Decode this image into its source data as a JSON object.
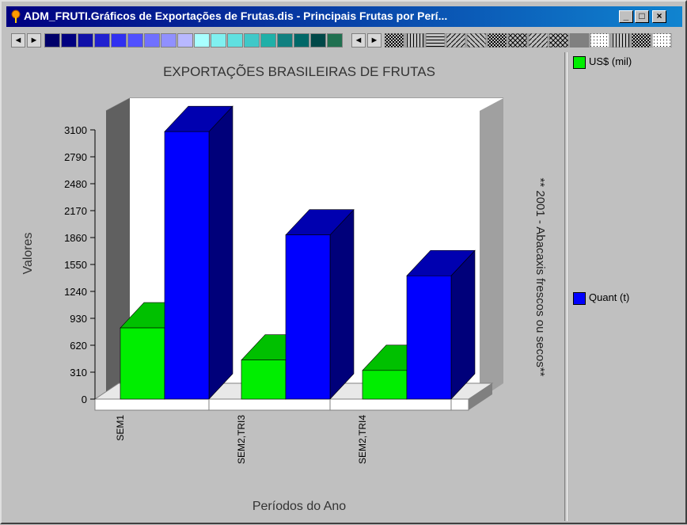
{
  "window": {
    "title": "ADM_FRUTI.Gráficos de Exportações de Frutas.dis - Principais Frutas por Perí...",
    "minimize": "_",
    "maximize": "□",
    "close": "×"
  },
  "colors": {
    "green": "#00ee00",
    "blue": "#0000ff",
    "palette": [
      "#00006a",
      "#000080",
      "#1010a8",
      "#2020d0",
      "#3030f0",
      "#5050ff",
      "#7070ff",
      "#9090ff",
      "#b8b8ff",
      "#a8ffff",
      "#80f0f0",
      "#60e0e0",
      "#40c8c8",
      "#20b0a8",
      "#108080",
      "#006868",
      "#004848",
      "#207050"
    ]
  },
  "legend": {
    "items": [
      {
        "label": "US$ (mil)",
        "color": "#00ee00"
      },
      {
        "label": "Quant (t)",
        "color": "#0000ff"
      }
    ]
  },
  "chart_data": {
    "type": "bar",
    "title": "EXPORTAÇÕES BRASILEIRAS DE FRUTAS",
    "subtitle": "** 2001 - Abacaxis frescos ou secos**",
    "xlabel": "Períodos do Ano",
    "ylabel": "Valores",
    "categories": [
      "SEM1",
      "SEM2,TRI3",
      "SEM2,TRI4"
    ],
    "series": [
      {
        "name": "US$ (mil)",
        "values": [
          820,
          450,
          330
        ]
      },
      {
        "name": "Quant (t)",
        "values": [
          3080,
          1890,
          1420
        ]
      }
    ],
    "yticks": [
      "0",
      "310",
      "620",
      "930",
      "1240",
      "1550",
      "1860",
      "2170",
      "2480",
      "2790",
      "3100"
    ],
    "ylim": [
      0,
      3100
    ],
    "grid": false,
    "legend_position": "right"
  }
}
